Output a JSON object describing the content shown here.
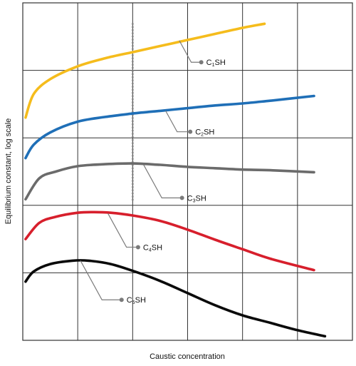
{
  "chart_data": {
    "type": "line",
    "title": "",
    "xlabel": "Caustic concentration",
    "ylabel": "Equilibrium constant, log scale",
    "xlim": [
      0,
      6
    ],
    "ylim": [
      0,
      5
    ],
    "grid": true,
    "legend": "none",
    "y_scale": "log",
    "reference_line": {
      "x": 2.0,
      "style": "dotted",
      "color": "#888888",
      "y_range": [
        2.05,
        4.7
      ]
    },
    "series": [
      {
        "name": "C1SH",
        "sub": "1",
        "color": "#F5BC1C",
        "x": [
          0.05,
          0.2,
          0.5,
          1.0,
          1.5,
          2.0,
          2.5,
          3.0,
          3.5,
          4.0,
          4.4
        ],
        "y": [
          3.3,
          3.65,
          3.87,
          4.06,
          4.18,
          4.27,
          4.36,
          4.45,
          4.54,
          4.63,
          4.69
        ],
        "callout": {
          "x": 2.85,
          "y": 4.44
        },
        "label_pos": {
          "x": 3.3,
          "y": 4.12
        }
      },
      {
        "name": "C2SH",
        "sub": "2",
        "color": "#1F6FB7",
        "x": [
          0.05,
          0.2,
          0.5,
          1.0,
          1.5,
          2.0,
          2.5,
          3.0,
          3.5,
          4.0,
          4.5,
          5.3
        ],
        "y": [
          2.7,
          2.9,
          3.08,
          3.24,
          3.31,
          3.36,
          3.4,
          3.44,
          3.48,
          3.51,
          3.55,
          3.62
        ],
        "callout": {
          "x": 2.6,
          "y": 3.4
        },
        "label_pos": {
          "x": 3.1,
          "y": 3.09
        }
      },
      {
        "name": "C3SH",
        "sub": "3",
        "color": "#6B6B6B",
        "x": [
          0.05,
          0.3,
          0.6,
          1.0,
          1.5,
          2.0,
          2.5,
          3.0,
          3.5,
          4.0,
          4.5,
          5.3
        ],
        "y": [
          2.09,
          2.4,
          2.5,
          2.58,
          2.61,
          2.62,
          2.6,
          2.57,
          2.55,
          2.53,
          2.52,
          2.49
        ],
        "callout": {
          "x": 2.2,
          "y": 2.6
        },
        "label_pos": {
          "x": 2.95,
          "y": 2.11
        }
      },
      {
        "name": "C4SH",
        "sub": "4",
        "color": "#D71F2C",
        "x": [
          0.05,
          0.3,
          0.6,
          1.0,
          1.3,
          1.6,
          2.0,
          2.5,
          3.0,
          3.5,
          4.0,
          4.5,
          5.3
        ],
        "y": [
          1.5,
          1.74,
          1.83,
          1.89,
          1.9,
          1.89,
          1.85,
          1.77,
          1.64,
          1.49,
          1.35,
          1.21,
          1.04
        ],
        "callout": {
          "x": 1.55,
          "y": 1.88
        },
        "label_pos": {
          "x": 2.15,
          "y": 1.38
        }
      },
      {
        "name": "C5SH",
        "sub": "5",
        "color": "#0A0A0A",
        "x": [
          0.05,
          0.2,
          0.5,
          0.9,
          1.2,
          1.6,
          2.0,
          2.5,
          3.0,
          3.5,
          4.0,
          4.5,
          5.0,
          5.5
        ],
        "y": [
          0.87,
          1.02,
          1.13,
          1.18,
          1.18,
          1.13,
          1.03,
          0.88,
          0.7,
          0.52,
          0.37,
          0.26,
          0.15,
          0.06
        ],
        "callout": {
          "x": 1.05,
          "y": 1.18
        },
        "label_pos": {
          "x": 1.85,
          "y": 0.6
        }
      }
    ]
  }
}
